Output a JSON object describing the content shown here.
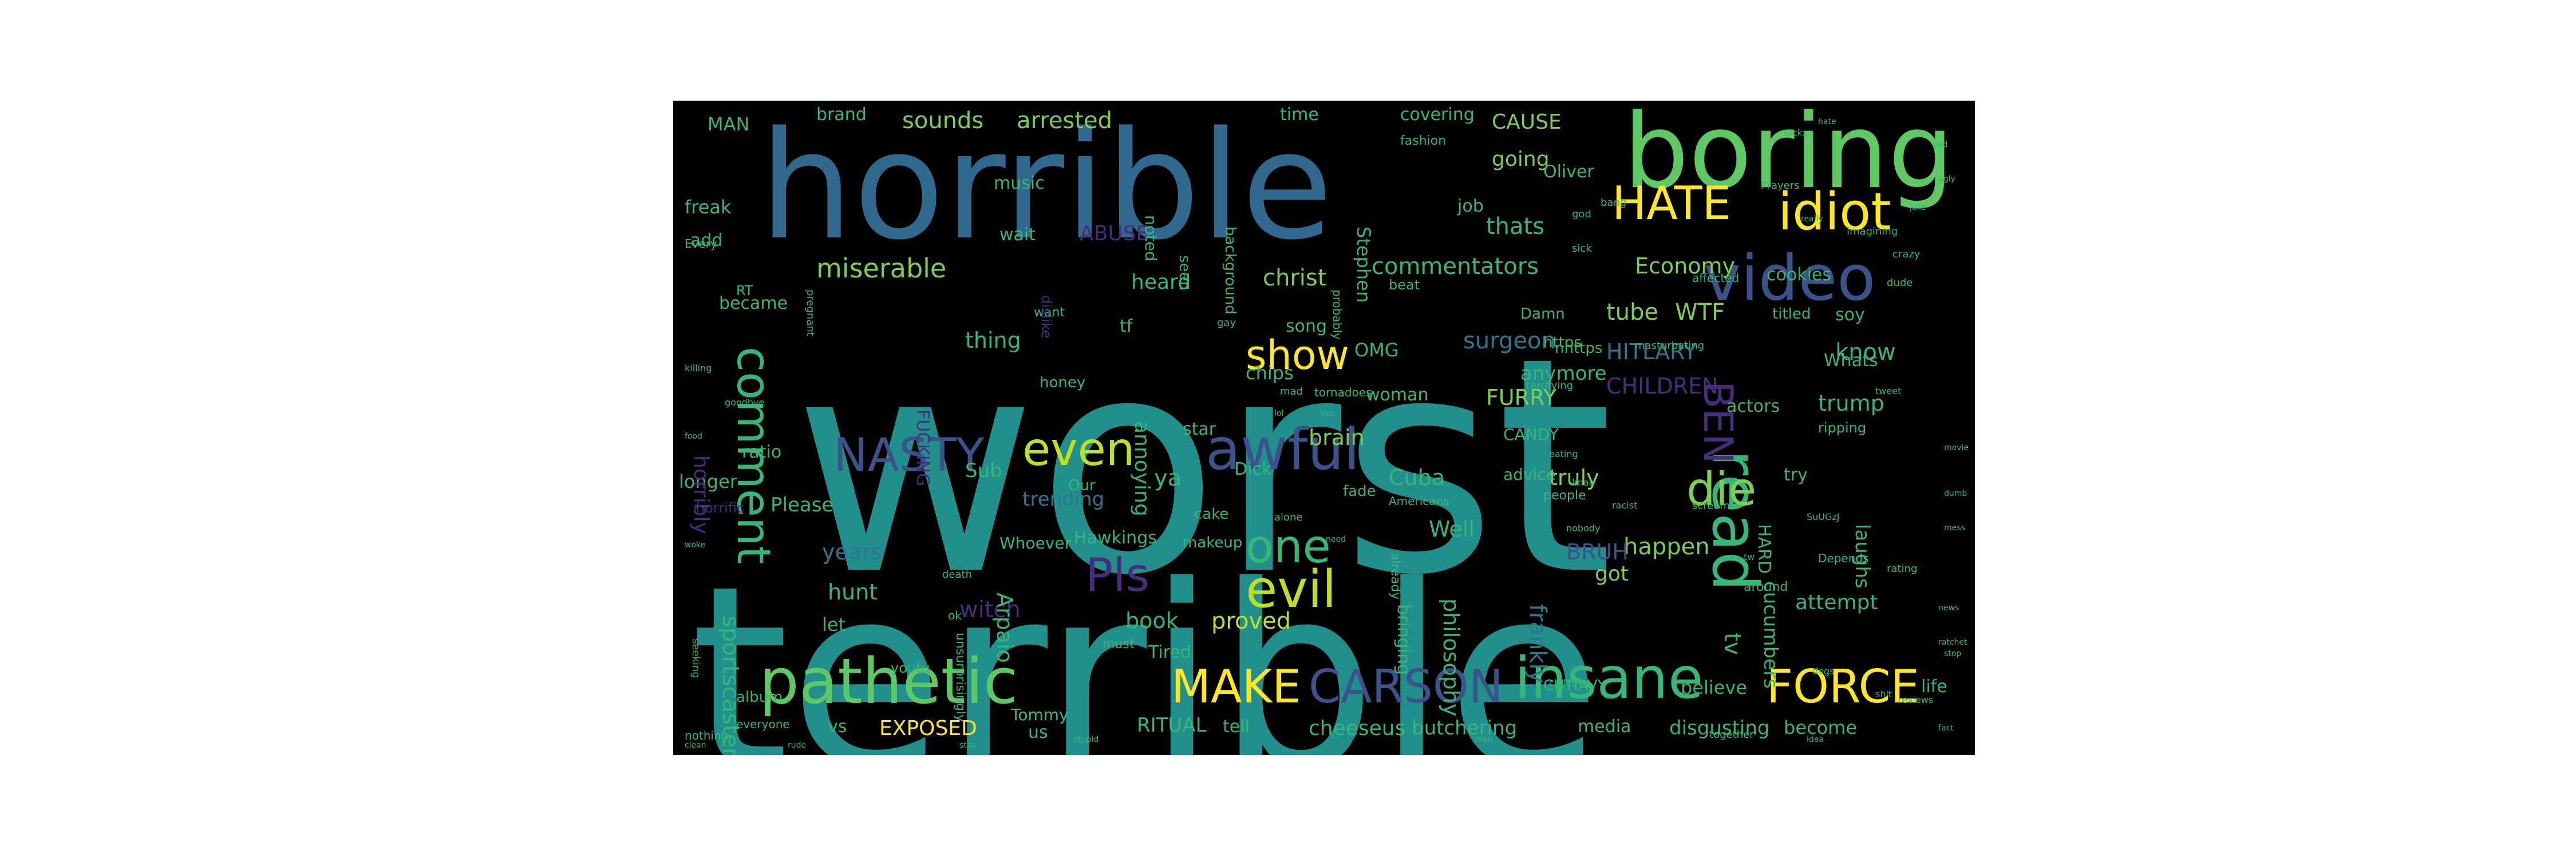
{
  "figure": {
    "background": "#ffffff",
    "cloud_background": "#000000"
  },
  "palette": {
    "teal": "#21908d",
    "blue": "#31688e",
    "slate": "#3b528b",
    "purple": "#472d7b",
    "darkpurple": "#440154",
    "green": "#5ec962",
    "seagreen": "#35b779",
    "lightgreen": "#7ad151",
    "yellow": "#fde725",
    "lime": "#bddf26",
    "cyan": "#2a788e"
  },
  "words": [
    {
      "text": "worst",
      "color": "teal"
    },
    {
      "text": "terrible",
      "color": "teal"
    },
    {
      "text": "horrible",
      "color": "blue"
    },
    {
      "text": "boring",
      "color": "green"
    },
    {
      "text": "pathetic",
      "color": "green"
    },
    {
      "text": "insane",
      "color": "seagreen"
    },
    {
      "text": "awful",
      "color": "slate"
    },
    {
      "text": "CARSON",
      "color": "slate"
    },
    {
      "text": "FORCE",
      "color": "yellow"
    },
    {
      "text": "MAKE",
      "color": "yellow"
    },
    {
      "text": "evil",
      "color": "lime"
    },
    {
      "text": "one",
      "color": "seagreen"
    },
    {
      "text": "video",
      "color": "slate"
    },
    {
      "text": "read",
      "color": "seagreen"
    },
    {
      "text": "idiot",
      "color": "yellow"
    },
    {
      "text": "HATE",
      "color": "yellow"
    },
    {
      "text": "die",
      "color": "lightgreen"
    },
    {
      "text": "even",
      "color": "lime"
    },
    {
      "text": "NASTY",
      "color": "slate"
    },
    {
      "text": "comment",
      "color": "seagreen"
    },
    {
      "text": "Pls",
      "color": "purple"
    },
    {
      "text": "show",
      "color": "yellow"
    },
    {
      "text": "BEN",
      "color": "purple"
    },
    {
      "text": "miserable",
      "color": "lightgreen"
    },
    {
      "text": "commentators",
      "color": "seagreen"
    },
    {
      "text": "christ",
      "color": "lightgreen"
    },
    {
      "text": "sounds",
      "color": "lightgreen"
    },
    {
      "text": "arrested",
      "color": "lightgreen"
    },
    {
      "text": "going",
      "color": "lightgreen"
    },
    {
      "text": "CAUSE",
      "color": "lightgreen"
    },
    {
      "text": "thats",
      "color": "seagreen"
    },
    {
      "text": "Economy",
      "color": "lightgreen"
    },
    {
      "text": "know",
      "color": "seagreen"
    },
    {
      "text": "surgeon",
      "color": "cyan"
    },
    {
      "text": "tube",
      "color": "lightgreen"
    },
    {
      "text": "WTF",
      "color": "lightgreen"
    },
    {
      "text": "HITLARY",
      "color": "cyan"
    },
    {
      "text": "CHILDREN",
      "color": "purple"
    },
    {
      "text": "trump",
      "color": "seagreen"
    },
    {
      "text": "FURRY",
      "color": "lightgreen"
    },
    {
      "text": "brain",
      "color": "lightgreen"
    },
    {
      "text": "Cuba",
      "color": "seagreen"
    },
    {
      "text": "truly",
      "color": "lightgreen"
    },
    {
      "text": "Well",
      "color": "seagreen"
    },
    {
      "text": "ya",
      "color": "seagreen"
    },
    {
      "text": "sportscaster",
      "color": "seagreen"
    },
    {
      "text": "years",
      "color": "cyan"
    },
    {
      "text": "hunt",
      "color": "seagreen"
    },
    {
      "text": "book",
      "color": "seagreen"
    },
    {
      "text": "proved",
      "color": "lime"
    },
    {
      "text": "witch",
      "color": "purple"
    },
    {
      "text": "Arpaio",
      "color": "seagreen"
    },
    {
      "text": "happen",
      "color": "lightgreen"
    },
    {
      "text": "frankly",
      "color": "cyan"
    },
    {
      "text": "BRUH",
      "color": "slate"
    },
    {
      "text": "philosophy",
      "color": "seagreen"
    },
    {
      "text": "bringing",
      "color": "seagreen"
    },
    {
      "text": "got",
      "color": "lightgreen"
    },
    {
      "text": "attempt",
      "color": "seagreen"
    },
    {
      "text": "cucumbers",
      "color": "seagreen"
    },
    {
      "text": "tv",
      "color": "seagreen"
    },
    {
      "text": "laughs",
      "color": "seagreen"
    },
    {
      "text": "EXPOSED",
      "color": "yellow"
    },
    {
      "text": "RITUAL",
      "color": "seagreen"
    },
    {
      "text": "cheeseus",
      "color": "seagreen"
    },
    {
      "text": "butchering",
      "color": "seagreen"
    },
    {
      "text": "disgusting",
      "color": "seagreen"
    },
    {
      "text": "believe",
      "color": "seagreen"
    },
    {
      "text": "become",
      "color": "seagreen"
    },
    {
      "text": "media",
      "color": "seagreen"
    },
    {
      "text": "Please",
      "color": "seagreen"
    },
    {
      "text": "trending",
      "color": "cyan"
    },
    {
      "text": "Sub",
      "color": "seagreen"
    },
    {
      "text": "longer",
      "color": "seagreen"
    },
    {
      "text": "ratio",
      "color": "seagreen"
    },
    {
      "text": "horribly",
      "color": "purple"
    },
    {
      "text": "became",
      "color": "seagreen"
    },
    {
      "text": "add",
      "color": "seagreen"
    },
    {
      "text": "freak",
      "color": "seagreen"
    },
    {
      "text": "MAN",
      "color": "seagreen"
    },
    {
      "text": "brand",
      "color": "seagreen"
    },
    {
      "text": "music",
      "color": "seagreen"
    },
    {
      "text": "wait",
      "color": "seagreen"
    },
    {
      "text": "heard",
      "color": "seagreen"
    },
    {
      "text": "ABUSE",
      "color": "purple"
    },
    {
      "text": "time",
      "color": "seagreen"
    },
    {
      "text": "covering",
      "color": "seagreen"
    },
    {
      "text": "Oliver",
      "color": "seagreen"
    },
    {
      "text": "job",
      "color": "seagreen"
    },
    {
      "text": "Stephen",
      "color": "seagreen"
    },
    {
      "text": "seen",
      "color": "seagreen"
    },
    {
      "text": "noted",
      "color": "seagreen"
    },
    {
      "text": "background",
      "color": "seagreen"
    },
    {
      "text": "song",
      "color": "seagreen"
    },
    {
      "text": "OMG",
      "color": "seagreen"
    },
    {
      "text": "chips",
      "color": "seagreen"
    },
    {
      "text": "thing",
      "color": "seagreen"
    },
    {
      "text": "honey",
      "color": "seagreen"
    },
    {
      "text": "annoying",
      "color": "seagreen"
    },
    {
      "text": "FUCKING",
      "color": "purple"
    },
    {
      "text": "star",
      "color": "seagreen"
    },
    {
      "text": "Dick",
      "color": "seagreen"
    },
    {
      "text": "woman",
      "color": "seagreen"
    },
    {
      "text": "anymore",
      "color": "seagreen"
    },
    {
      "text": "CANDY",
      "color": "seagreen"
    },
    {
      "text": "advice",
      "color": "seagreen"
    },
    {
      "text": "Whats",
      "color": "seagreen"
    },
    {
      "text": "soy",
      "color": "seagreen"
    },
    {
      "text": "cookies",
      "color": "seagreen"
    },
    {
      "text": "titled",
      "color": "seagreen"
    },
    {
      "text": "actors",
      "color": "seagreen"
    },
    {
      "text": "HARD",
      "color": "seagreen"
    },
    {
      "text": "try",
      "color": "seagreen"
    },
    {
      "text": "fade",
      "color": "seagreen"
    },
    {
      "text": "cake",
      "color": "seagreen"
    },
    {
      "text": "Hawkings",
      "color": "seagreen"
    },
    {
      "text": "makeup",
      "color": "seagreen"
    },
    {
      "text": "Our",
      "color": "seagreen"
    },
    {
      "text": "let",
      "color": "seagreen"
    },
    {
      "text": "Tired",
      "color": "seagreen"
    },
    {
      "text": "album",
      "color": "seagreen"
    },
    {
      "text": "vs",
      "color": "seagreen"
    },
    {
      "text": "us",
      "color": "seagreen"
    },
    {
      "text": "Tommy",
      "color": "seagreen"
    },
    {
      "text": "tell",
      "color": "seagreen"
    },
    {
      "text": "life",
      "color": "seagreen"
    },
    {
      "text": "RT",
      "color": "seagreen"
    },
    {
      "text": "tf",
      "color": "seagreen"
    },
    {
      "text": "beat",
      "color": "seagreen"
    },
    {
      "text": "people",
      "color": "seagreen"
    },
    {
      "text": "already",
      "color": "seagreen"
    },
    {
      "text": "around",
      "color": "seagreen"
    },
    {
      "text": "Whoever",
      "color": "seagreen"
    },
    {
      "text": "must",
      "color": "seagreen"
    },
    {
      "text": "want",
      "color": "seagreen"
    },
    {
      "text": "dislike",
      "color": "purple"
    },
    {
      "text": "probably",
      "color": "seagreen"
    },
    {
      "text": "Damn",
      "color": "seagreen"
    },
    {
      "text": "terrifying",
      "color": "seagreen"
    },
    {
      "text": "Depends",
      "color": "seagreen"
    },
    {
      "text": "together",
      "color": "seagreen"
    },
    {
      "text": "Americans",
      "color": "seagreen"
    },
    {
      "text": "Prayers",
      "color": "seagreen"
    },
    {
      "text": "fashion",
      "color": "seagreen"
    },
    {
      "text": "imagining",
      "color": "seagreen"
    },
    {
      "text": "masturbating",
      "color": "seagreen"
    },
    {
      "text": "ripping",
      "color": "seagreen"
    },
    {
      "text": "affected",
      "color": "seagreen"
    },
    {
      "text": "tornadoes",
      "color": "seagreen"
    },
    {
      "text": "horrific",
      "color": "purple"
    },
    {
      "text": "everyone",
      "color": "seagreen"
    },
    {
      "text": "nothing",
      "color": "seagreen"
    },
    {
      "text": "unsurprisingly",
      "color": "seagreen"
    },
    {
      "text": "https",
      "color": "seagreen"
    },
    {
      "text": "youtu",
      "color": "seagreen"
    },
    {
      "text": "death",
      "color": "seagreen"
    },
    {
      "text": "rating",
      "color": "seagreen"
    },
    {
      "text": "scream",
      "color": "seagreen"
    },
    {
      "text": "gay",
      "color": "seagreen"
    },
    {
      "text": "ok",
      "color": "seagreen"
    },
    {
      "text": "Every",
      "color": "seagreen"
    },
    {
      "text": "pregnant",
      "color": "seagreen"
    },
    {
      "text": "dude",
      "color": "seagreen"
    },
    {
      "text": "seeking",
      "color": "seagreen"
    },
    {
      "text": "crazy",
      "color": "seagreen"
    },
    {
      "text": "bang",
      "color": "seagreen"
    },
    {
      "text": "mad",
      "color": "seagreen"
    },
    {
      "text": "god",
      "color": "seagreen"
    },
    {
      "text": "sick",
      "color": "seagreen"
    },
    {
      "text": "cuties",
      "color": "seagreen"
    },
    {
      "text": "lmao",
      "color": "seagreen"
    },
    {
      "text": "alone",
      "color": "seagreen"
    },
    {
      "text": "shit",
      "color": "seagreen"
    },
    {
      "text": "eating",
      "color": "seagreen"
    },
    {
      "text": "nobody",
      "color": "seagreen"
    },
    {
      "text": "clean",
      "color": "seagreen"
    },
    {
      "text": "reviews",
      "color": "seagreen"
    },
    {
      "text": "tweet",
      "color": "seagreen"
    },
    {
      "text": "dogs",
      "color": "seagreen"
    },
    {
      "text": "racist",
      "color": "seagreen"
    },
    {
      "text": "SuUGzJ",
      "color": "seagreen"
    },
    {
      "text": "nhttps",
      "color": "seagreen"
    },
    {
      "text": "killing",
      "color": "seagreen"
    },
    {
      "text": "goodbye",
      "color": "seagreen"
    },
    {
      "text": "tw",
      "color": "seagreen"
    },
    {
      "text": "yes",
      "color": "seagreen"
    },
    {
      "text": "lol",
      "color": "seagreen"
    },
    {
      "text": "need",
      "color": "seagreen"
    },
    {
      "text": "really",
      "color": "seagreen"
    },
    {
      "text": "CUTIAVY",
      "color": "seagreen"
    },
    {
      "text": "sucks",
      "color": "seagreen"
    },
    {
      "text": "hate",
      "color": "seagreen"
    },
    {
      "text": "bad",
      "color": "seagreen"
    },
    {
      "text": "ugly",
      "color": "seagreen"
    },
    {
      "text": "joke",
      "color": "seagreen"
    },
    {
      "text": "movie",
      "color": "seagreen"
    },
    {
      "text": "dumb",
      "color": "seagreen"
    },
    {
      "text": "mess",
      "color": "seagreen"
    },
    {
      "text": "news",
      "color": "seagreen"
    },
    {
      "text": "ratchet",
      "color": "seagreen"
    },
    {
      "text": "stop",
      "color": "seagreen"
    },
    {
      "text": "fact",
      "color": "seagreen"
    },
    {
      "text": "idea",
      "color": "seagreen"
    },
    {
      "text": "man",
      "color": "seagreen"
    },
    {
      "text": "stupid",
      "color": "seagreen"
    },
    {
      "text": "stay",
      "color": "seagreen"
    },
    {
      "text": "rude",
      "color": "seagreen"
    },
    {
      "text": "food",
      "color": "seagreen"
    },
    {
      "text": "woke",
      "color": "seagreen"
    }
  ]
}
